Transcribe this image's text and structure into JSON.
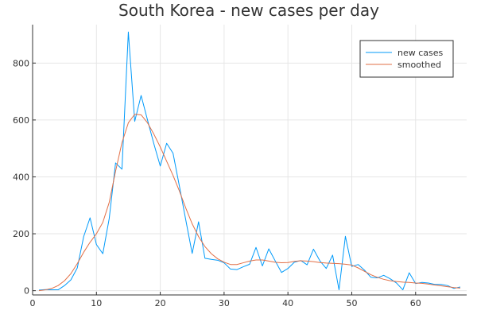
{
  "chart_data": {
    "type": "line",
    "title": "South Korea - new cases per day",
    "xlabel": "",
    "ylabel": "",
    "xlim": [
      0,
      68
    ],
    "ylim": [
      -15,
      935
    ],
    "x_ticks": [
      0,
      10,
      20,
      30,
      40,
      50,
      60
    ],
    "y_ticks": [
      0,
      200,
      400,
      600,
      800
    ],
    "grid": true,
    "legend_position": "top-right",
    "series": [
      {
        "name": "new cases",
        "color": "#009AFA",
        "x": [
          1,
          2,
          3,
          4,
          5,
          6,
          7,
          8,
          9,
          10,
          11,
          12,
          13,
          14,
          15,
          16,
          17,
          18,
          19,
          20,
          21,
          22,
          23,
          24,
          25,
          26,
          27,
          28,
          29,
          30,
          31,
          32,
          33,
          34,
          35,
          36,
          37,
          38,
          39,
          40,
          41,
          42,
          43,
          44,
          45,
          46,
          47,
          48,
          49,
          50,
          51,
          52,
          53,
          54,
          55,
          56,
          57,
          58,
          59,
          60,
          61,
          62,
          63,
          64,
          65,
          66,
          67
        ],
        "y": [
          2,
          4,
          3,
          3,
          18,
          38,
          80,
          190,
          256,
          162,
          130,
          253,
          449,
          427,
          909,
          595,
          686,
          600,
          516,
          438,
          518,
          483,
          367,
          248,
          131,
          242,
          114,
          110,
          107,
          98,
          76,
          74,
          84,
          93,
          152,
          87,
          147,
          105,
          64,
          78,
          100,
          106,
          91,
          146,
          105,
          78,
          125,
          3,
          191,
          85,
          92,
          72,
          47,
          45,
          54,
          42,
          27,
          3,
          63,
          25,
          29,
          27,
          22,
          22,
          18,
          8,
          13
        ]
      },
      {
        "name": "smoothed",
        "color": "#E26F46",
        "x": [
          1,
          2,
          3,
          4,
          5,
          6,
          7,
          8,
          9,
          10,
          11,
          12,
          13,
          14,
          15,
          16,
          17,
          18,
          19,
          20,
          21,
          22,
          23,
          24,
          25,
          26,
          27,
          28,
          29,
          30,
          31,
          32,
          33,
          34,
          35,
          36,
          37,
          38,
          39,
          40,
          41,
          42,
          43,
          44,
          45,
          46,
          47,
          48,
          49,
          50,
          51,
          52,
          53,
          54,
          55,
          56,
          57,
          58,
          59,
          60,
          61,
          62,
          63,
          64,
          65,
          66,
          67
        ],
        "y": [
          0,
          3,
          8,
          18,
          35,
          60,
          95,
          135,
          170,
          200,
          240,
          310,
          420,
          520,
          590,
          620,
          618,
          590,
          550,
          505,
          455,
          405,
          350,
          290,
          235,
          190,
          155,
          130,
          112,
          100,
          92,
          92,
          98,
          104,
          108,
          108,
          104,
          100,
          98,
          99,
          103,
          105,
          104,
          102,
          99,
          97,
          96,
          95,
          93,
          90,
          80,
          68,
          56,
          47,
          40,
          35,
          32,
          30,
          29,
          27,
          26,
          23,
          20,
          17,
          14,
          11,
          9
        ]
      }
    ]
  }
}
